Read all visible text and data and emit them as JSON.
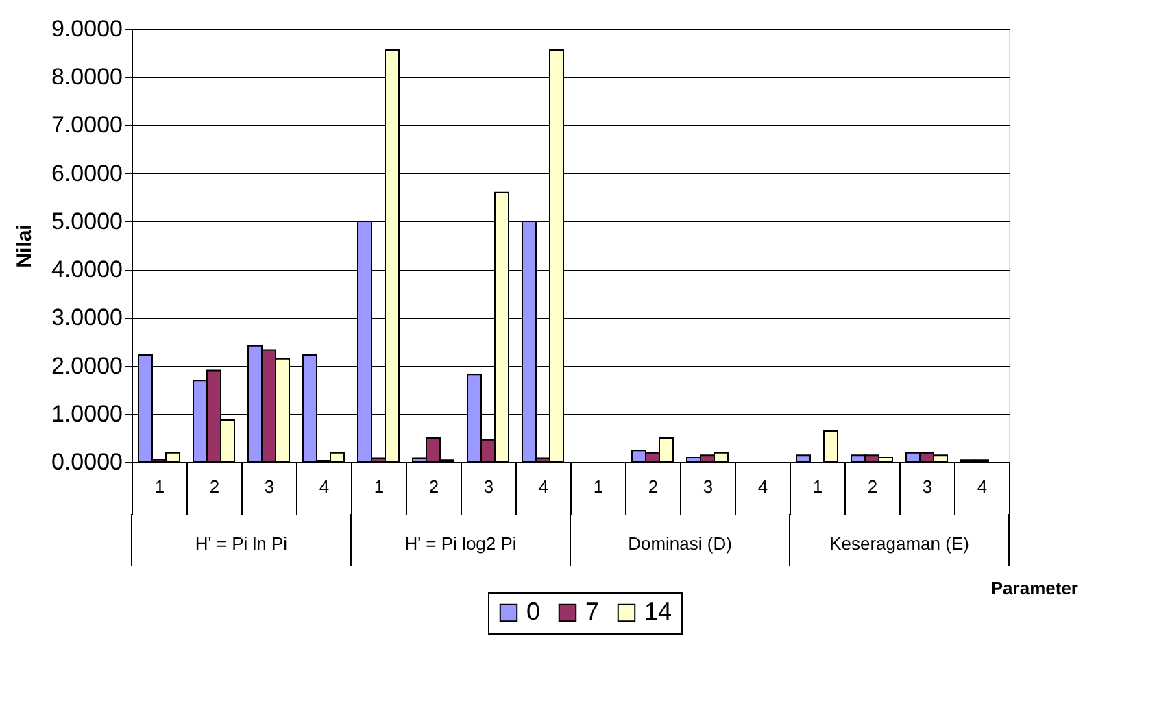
{
  "chart_data": {
    "type": "bar",
    "xlabel": "Parameter",
    "ylabel": "Nilai",
    "categories": [
      "1",
      "2",
      "3",
      "4",
      "1",
      "2",
      "3",
      "4",
      "1",
      "2",
      "3",
      "4",
      "1",
      "2",
      "3",
      "4"
    ],
    "annotations": [
      "H' = Pi ln Pi",
      "H' = Pi log2 Pi",
      "Dominasi (D)",
      "Keseragaman (E)"
    ],
    "series": [
      {
        "name": "0",
        "color": "#9999ff",
        "values": [
          2.22,
          1.69,
          2.41,
          2.22,
          5.0,
          0.08,
          1.82,
          5.0,
          0,
          0.24,
          0.1,
          0,
          0.14,
          0.14,
          0.19,
          0.04
        ]
      },
      {
        "name": "7",
        "color": "#993366",
        "values": [
          0.05,
          1.9,
          2.33,
          0.03,
          0.08,
          0.5,
          0.46,
          0.08,
          0,
          0.19,
          0.14,
          0,
          0,
          0.14,
          0.19,
          0.04
        ]
      },
      {
        "name": "14",
        "color": "#ffffcc",
        "values": [
          0.19,
          0.87,
          2.14,
          0.19,
          8.56,
          0.04,
          5.6,
          8.56,
          0,
          0.5,
          0.19,
          0,
          0.64,
          0.1,
          0.14,
          0
        ]
      }
    ],
    "ylim": [
      0,
      9
    ],
    "yticks": [
      {
        "value": 0,
        "label": "0.0000"
      },
      {
        "value": 1,
        "label": "1.0000"
      },
      {
        "value": 2,
        "label": "2.0000"
      },
      {
        "value": 3,
        "label": "3.0000"
      },
      {
        "value": 4,
        "label": "4.0000"
      },
      {
        "value": 5,
        "label": "5.0000"
      },
      {
        "value": 6,
        "label": "6.0000"
      },
      {
        "value": 7,
        "label": "7.0000"
      },
      {
        "value": 8,
        "label": "8.0000"
      },
      {
        "value": 9,
        "label": "9.0000"
      }
    ],
    "grid": "y",
    "legend": "bottom"
  }
}
